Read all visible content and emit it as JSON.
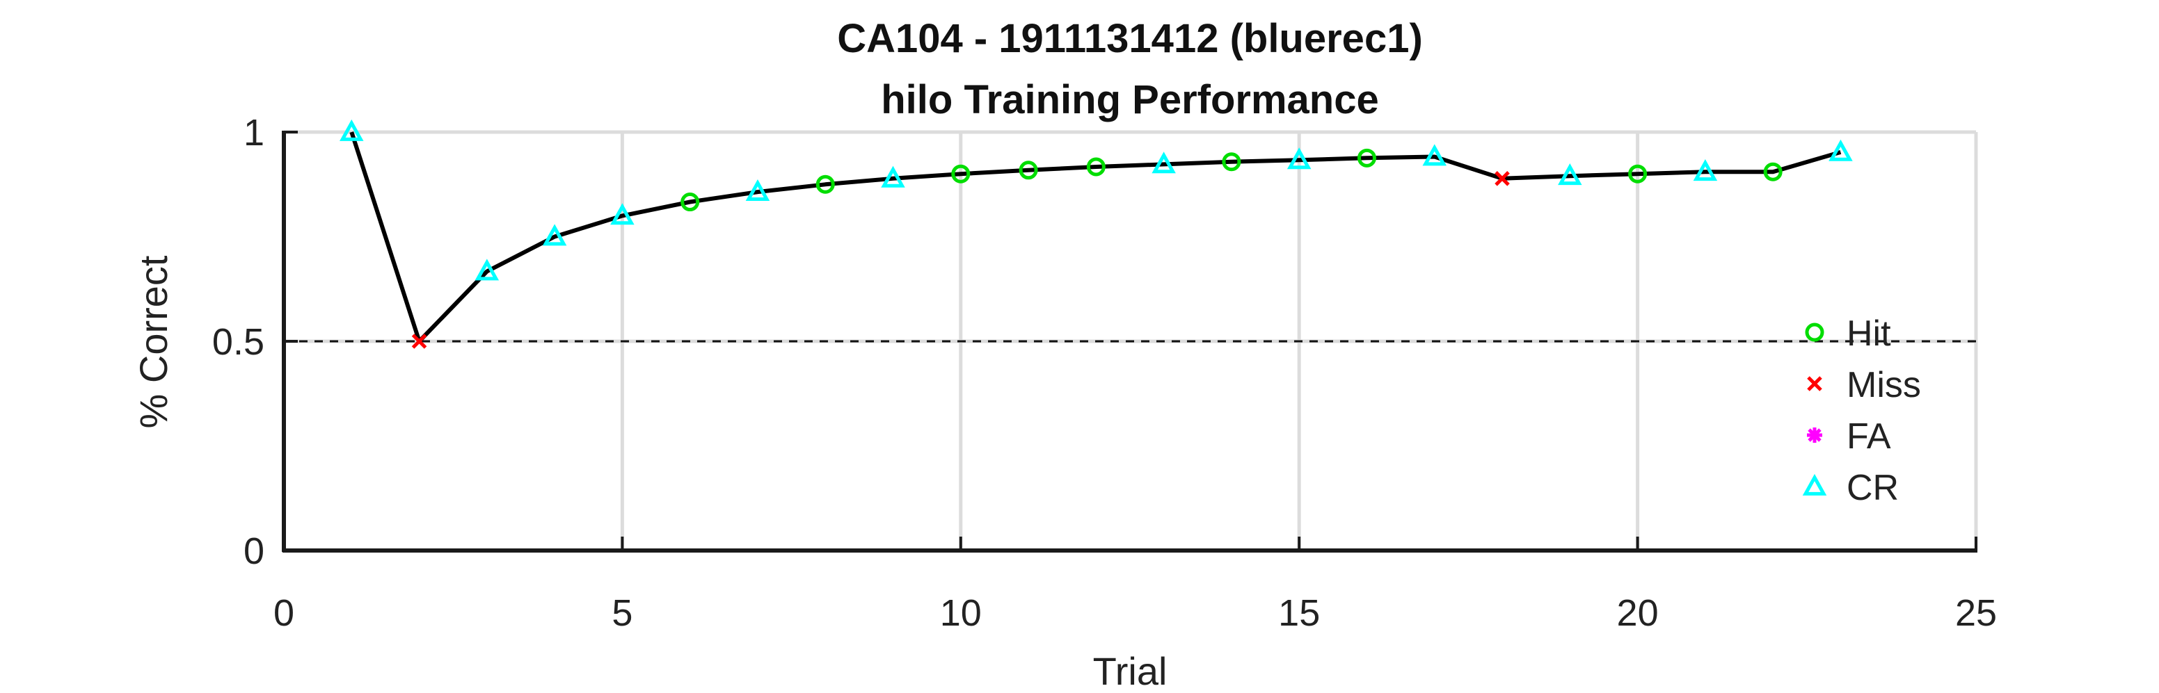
{
  "chart_data": {
    "type": "line",
    "title": "CA104 - 1911131412 (bluerec1)",
    "subtitle": "hilo Training Performance",
    "xlabel": "Trial",
    "ylabel": "% Correct",
    "xlim": [
      0,
      25
    ],
    "ylim": [
      0,
      1
    ],
    "xticks": [
      "0",
      "5",
      "10",
      "15",
      "20",
      "25"
    ],
    "yticks": [
      "0",
      "0.5",
      "1"
    ],
    "grid": true,
    "reference_line": {
      "y": 0.5,
      "style": "dashed"
    },
    "legend_position": "right",
    "legend": [
      {
        "label": "Hit",
        "marker": "circle",
        "color": "#00dd00"
      },
      {
        "label": "Miss",
        "marker": "x",
        "color": "#ff0000"
      },
      {
        "label": "FA",
        "marker": "asterisk",
        "color": "#ff00ff"
      },
      {
        "label": "CR",
        "marker": "triangle",
        "color": "#00ffff"
      }
    ],
    "series": [
      {
        "line_color": "#000000",
        "x": [
          1,
          2,
          3,
          4,
          5,
          6,
          7,
          8,
          9,
          10,
          11,
          12,
          13,
          14,
          15,
          16,
          17,
          18,
          19,
          20,
          21,
          22,
          23
        ],
        "y": [
          1.0,
          0.5,
          0.667,
          0.75,
          0.8,
          0.833,
          0.857,
          0.875,
          0.889,
          0.9,
          0.909,
          0.917,
          0.923,
          0.929,
          0.933,
          0.938,
          0.941,
          0.889,
          0.895,
          0.9,
          0.905,
          0.905,
          0.952
        ],
        "outcome": [
          "CR",
          "Miss",
          "CR",
          "CR",
          "CR",
          "Hit",
          "CR",
          "Hit",
          "CR",
          "Hit",
          "Hit",
          "Hit",
          "CR",
          "Hit",
          "CR",
          "Hit",
          "CR",
          "Miss",
          "CR",
          "Hit",
          "CR",
          "Hit",
          "CR"
        ]
      }
    ]
  }
}
